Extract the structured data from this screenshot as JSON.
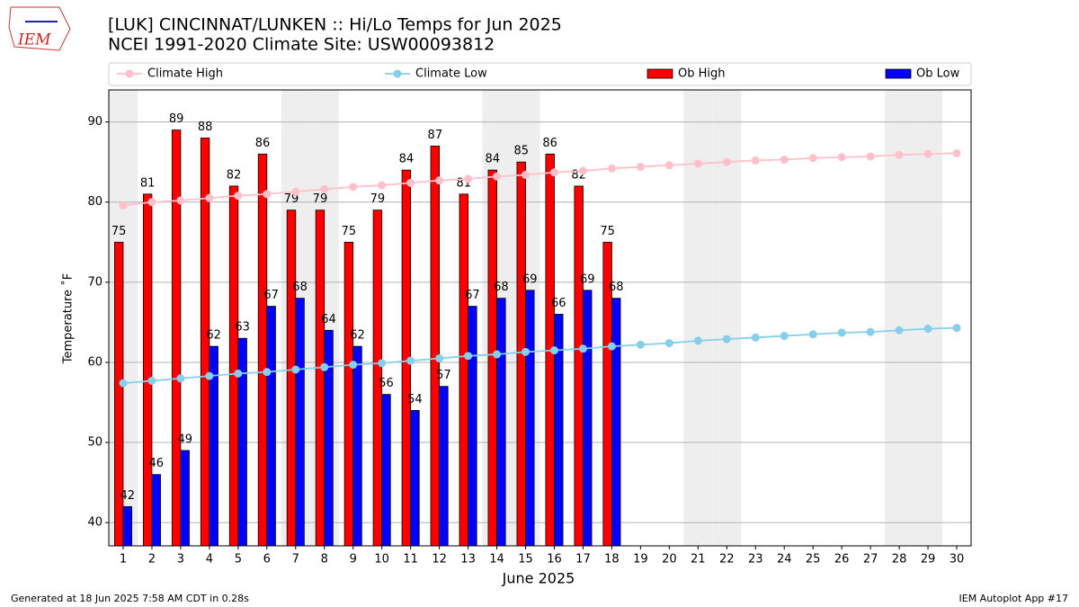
{
  "logo_text": "IEM",
  "chart_data": {
    "type": "bar",
    "title": "[LUK] CINCINNAT/LUNKEN :: Hi/Lo Temps for Jun 2025",
    "subtitle": "NCEI 1991-2020 Climate Site: USW00093812",
    "xlabel": "June 2025",
    "ylabel": "Temperature ˚F",
    "x": [
      1,
      2,
      3,
      4,
      5,
      6,
      7,
      8,
      9,
      10,
      11,
      12,
      13,
      14,
      15,
      16,
      17,
      18,
      19,
      20,
      21,
      22,
      23,
      24,
      25,
      26,
      27,
      28,
      29,
      30
    ],
    "xlim": [
      0.5,
      30.5
    ],
    "xticks": [
      1,
      2,
      3,
      4,
      5,
      6,
      7,
      8,
      9,
      10,
      11,
      12,
      13,
      14,
      15,
      16,
      17,
      18,
      19,
      20,
      21,
      22,
      23,
      24,
      25,
      26,
      27,
      28,
      29,
      30
    ],
    "ylim": [
      37.1,
      94.0
    ],
    "yticks": [
      40,
      50,
      60,
      70,
      80,
      90
    ],
    "grid": true,
    "legend": "upper center",
    "shaded_days": [
      1,
      7,
      8,
      14,
      15,
      21,
      22,
      28,
      29
    ],
    "series": [
      {
        "name": "Climate High",
        "type": "line",
        "color": "#ffc0cb",
        "values": [
          79.6,
          80.0,
          80.2,
          80.5,
          80.8,
          81.0,
          81.3,
          81.6,
          81.9,
          82.1,
          82.4,
          82.7,
          82.9,
          83.2,
          83.4,
          83.7,
          83.9,
          84.2,
          84.4,
          84.6,
          84.8,
          85.0,
          85.2,
          85.3,
          85.5,
          85.6,
          85.7,
          85.9,
          86.0,
          86.1
        ]
      },
      {
        "name": "Climate Low",
        "type": "line",
        "color": "#87ceeb",
        "values": [
          57.4,
          57.7,
          58.0,
          58.3,
          58.6,
          58.8,
          59.1,
          59.4,
          59.7,
          59.9,
          60.2,
          60.5,
          60.8,
          61.0,
          61.3,
          61.5,
          61.7,
          62.0,
          62.2,
          62.4,
          62.7,
          62.9,
          63.1,
          63.3,
          63.5,
          63.7,
          63.8,
          64.0,
          64.2,
          64.3
        ]
      },
      {
        "name": "Ob High",
        "type": "bar",
        "color": "#ff0000",
        "values": [
          75,
          81,
          89,
          88,
          82,
          86,
          79,
          79,
          75,
          79,
          84,
          87,
          81,
          84,
          85,
          86,
          82,
          75,
          null,
          null,
          null,
          null,
          null,
          null,
          null,
          null,
          null,
          null,
          null,
          null
        ]
      },
      {
        "name": "Ob Low",
        "type": "bar",
        "color": "#0000ff",
        "values": [
          42,
          46,
          49,
          62,
          63,
          67,
          68,
          64,
          62,
          56,
          54,
          57,
          67,
          68,
          69,
          66,
          69,
          68,
          null,
          null,
          null,
          null,
          null,
          null,
          null,
          null,
          null,
          null,
          null,
          null
        ]
      }
    ],
    "footer_left": "Generated at 18 Jun 2025 7:58 AM CDT in 0.28s",
    "footer_right": "IEM Autoplot App #17"
  }
}
